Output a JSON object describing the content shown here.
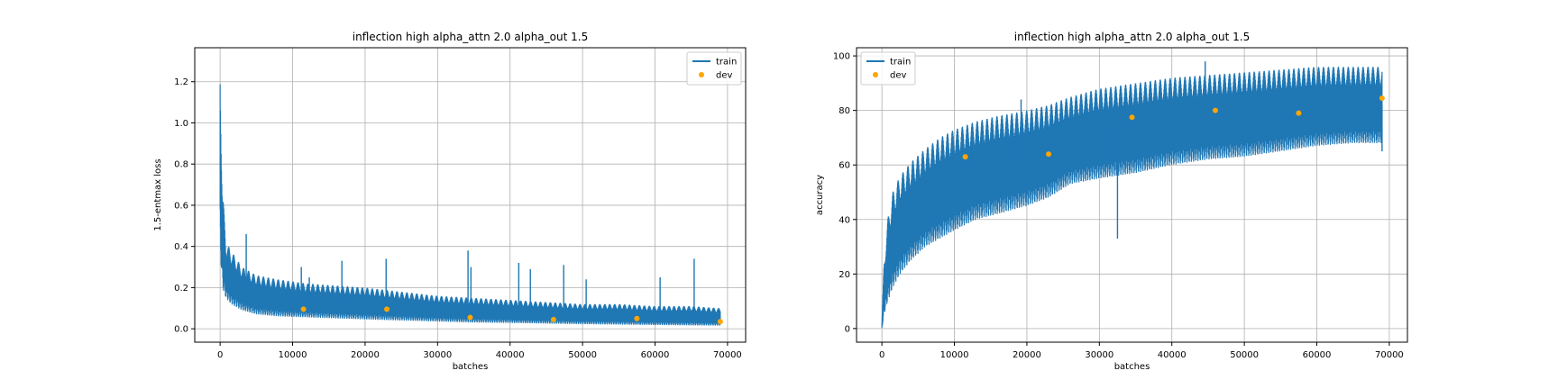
{
  "chart_data": [
    {
      "type": "line",
      "title": "inflection high alpha_attn 2.0 alpha_out 1.5",
      "xlabel": "batches",
      "ylabel": "1.5-entmax loss",
      "xlim": [
        -3500,
        72500
      ],
      "ylim": [
        -0.065,
        1.365
      ],
      "xticks": [
        0,
        10000,
        20000,
        30000,
        40000,
        50000,
        60000,
        70000
      ],
      "xtick_labels": [
        "0",
        "10000",
        "20000",
        "30000",
        "40000",
        "50000",
        "60000",
        "70000"
      ],
      "yticks": [
        0.0,
        0.2,
        0.4,
        0.6,
        0.8,
        1.0,
        1.2
      ],
      "ytick_labels": [
        "0.0",
        "0.2",
        "0.4",
        "0.6",
        "0.8",
        "1.0",
        "1.2"
      ],
      "grid": true,
      "legend_position": "top-right",
      "series": [
        {
          "name": "train",
          "kind": "line",
          "color": "#1f77b4",
          "band_x": [
            0,
            300,
            800,
            1500,
            3000,
            5000,
            8000,
            12000,
            16000,
            20000,
            25000,
            30000,
            35000,
            40000,
            45000,
            50000,
            55000,
            60000,
            65000,
            69000
          ],
          "band_low": [
            0.4,
            0.2,
            0.15,
            0.12,
            0.09,
            0.07,
            0.06,
            0.055,
            0.05,
            0.045,
            0.04,
            0.035,
            0.03,
            0.028,
            0.025,
            0.022,
            0.02,
            0.018,
            0.016,
            0.015
          ],
          "band_high": [
            1.3,
            0.7,
            0.42,
            0.38,
            0.3,
            0.26,
            0.24,
            0.22,
            0.21,
            0.2,
            0.18,
            0.16,
            0.15,
            0.14,
            0.13,
            0.12,
            0.12,
            0.11,
            0.11,
            0.1
          ],
          "spikes": [
            {
              "x": 3600,
              "y": 0.46
            },
            {
              "x": 11200,
              "y": 0.3
            },
            {
              "x": 12300,
              "y": 0.25
            },
            {
              "x": 16800,
              "y": 0.33
            },
            {
              "x": 22900,
              "y": 0.34
            },
            {
              "x": 34200,
              "y": 0.38
            },
            {
              "x": 34600,
              "y": 0.3
            },
            {
              "x": 41200,
              "y": 0.32
            },
            {
              "x": 42800,
              "y": 0.29
            },
            {
              "x": 47400,
              "y": 0.31
            },
            {
              "x": 50500,
              "y": 0.24
            },
            {
              "x": 60700,
              "y": 0.25
            },
            {
              "x": 65400,
              "y": 0.34
            }
          ]
        },
        {
          "name": "dev",
          "kind": "scatter",
          "color": "#ffa500",
          "x": [
            11500,
            23000,
            34500,
            46000,
            57500,
            69000
          ],
          "y": [
            0.095,
            0.095,
            0.055,
            0.045,
            0.05,
            0.035
          ]
        }
      ]
    },
    {
      "type": "line",
      "title": "inflection high alpha_attn 2.0 alpha_out 1.5",
      "xlabel": "batches",
      "ylabel": "accuracy",
      "xlim": [
        -3500,
        72500
      ],
      "ylim": [
        -5,
        103
      ],
      "xticks": [
        0,
        10000,
        20000,
        30000,
        40000,
        50000,
        60000,
        70000
      ],
      "xtick_labels": [
        "0",
        "10000",
        "20000",
        "30000",
        "40000",
        "50000",
        "60000",
        "70000"
      ],
      "yticks": [
        0,
        20,
        40,
        60,
        80,
        100
      ],
      "ytick_labels": [
        "0",
        "20",
        "40",
        "60",
        "80",
        "100"
      ],
      "grid": true,
      "legend_position": "top-left",
      "series": [
        {
          "name": "train",
          "kind": "line",
          "color": "#1f77b4",
          "band_x": [
            0,
            300,
            800,
            1500,
            2500,
            4000,
            6000,
            8000,
            10000,
            13000,
            16000,
            20000,
            23000,
            26000,
            30000,
            35000,
            40000,
            45000,
            50000,
            55000,
            60000,
            65000,
            69000
          ],
          "band_low": [
            0,
            5,
            10,
            15,
            20,
            25,
            30,
            33,
            36,
            40,
            42,
            45,
            48,
            53,
            55,
            57,
            60,
            62,
            63,
            65,
            67,
            68,
            68
          ],
          "band_high": [
            2,
            25,
            40,
            50,
            56,
            61,
            66,
            70,
            73,
            76,
            78,
            80,
            82,
            85,
            88,
            90,
            92,
            93,
            94,
            95,
            96,
            96,
            96
          ],
          "spikes": [
            {
              "x": 19200,
              "y": 84
            },
            {
              "x": 32500,
              "y": 33
            },
            {
              "x": 44600,
              "y": 98
            },
            {
              "x": 69000,
              "y": 65
            }
          ]
        },
        {
          "name": "dev",
          "kind": "scatter",
          "color": "#ffa500",
          "x": [
            11500,
            23000,
            34500,
            46000,
            57500,
            69000
          ],
          "y": [
            63,
            64,
            77.5,
            80,
            79,
            84.5
          ]
        }
      ]
    }
  ]
}
